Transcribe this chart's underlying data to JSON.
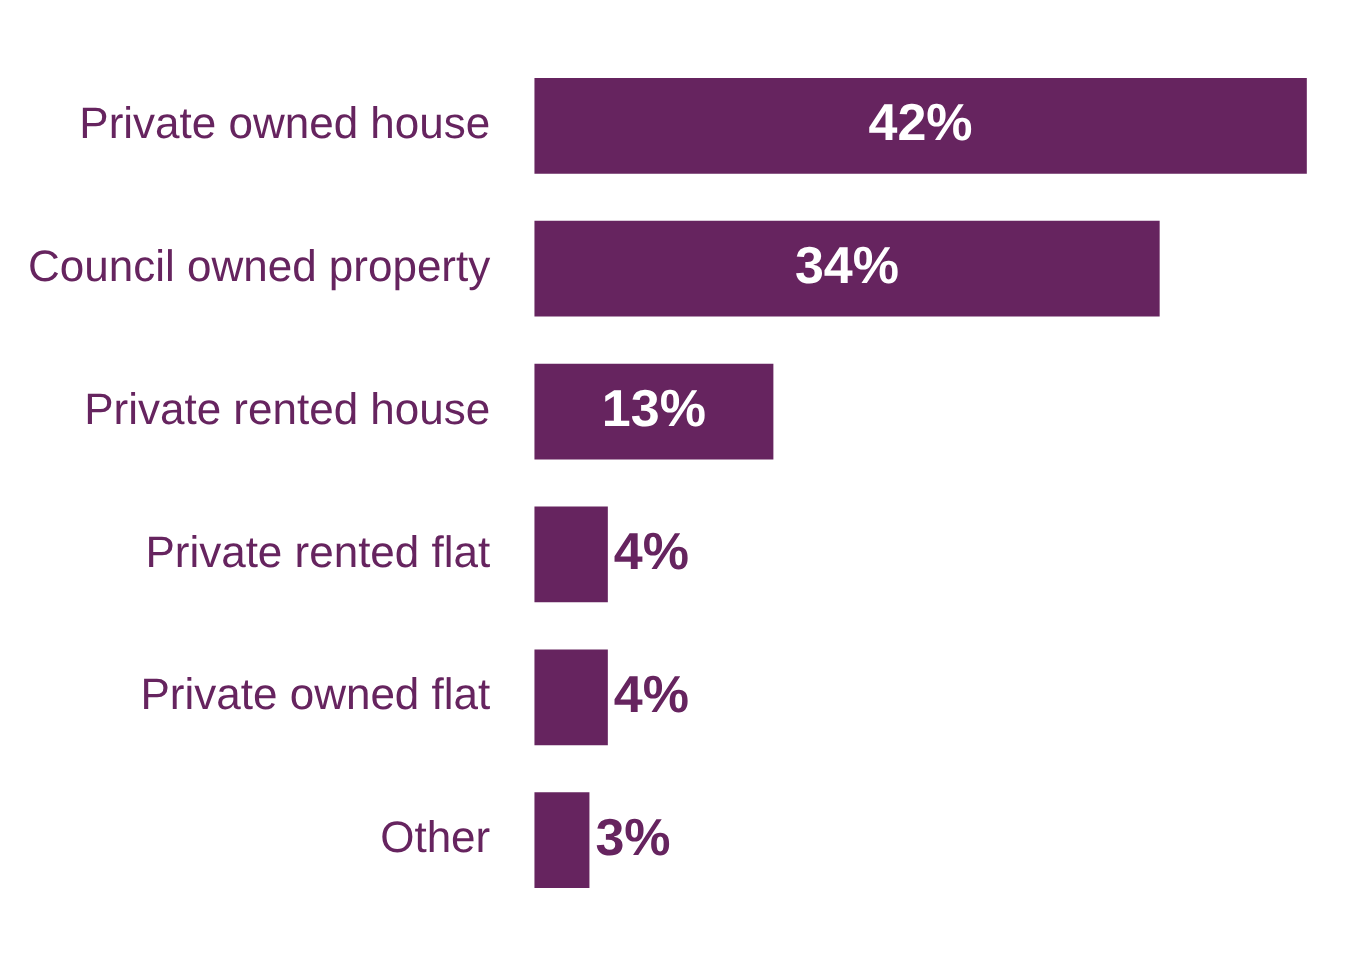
{
  "chart_data": {
    "type": "bar",
    "orientation": "horizontal",
    "categories": [
      "Private owned house",
      "Council owned property",
      "Private rented house",
      "Private rented flat",
      "Private owned flat",
      "Other"
    ],
    "values": [
      42,
      34,
      13,
      4,
      4,
      3
    ],
    "value_labels": [
      "42%",
      "34%",
      "13%",
      "4%",
      "4%",
      "3%"
    ],
    "color": "#66245f"
  }
}
